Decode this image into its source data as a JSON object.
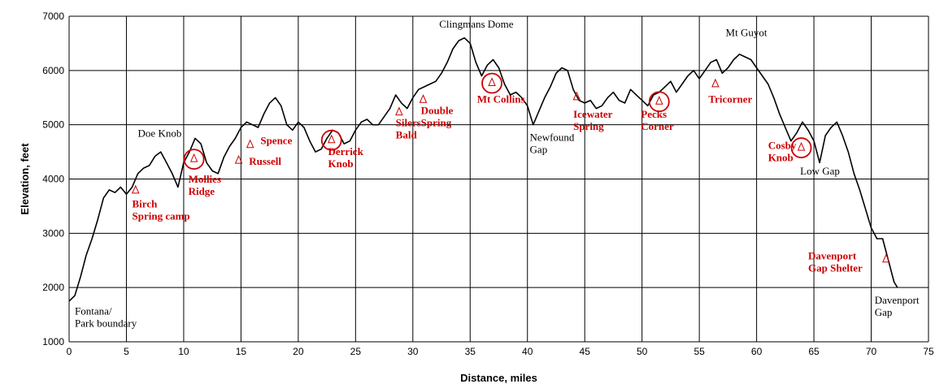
{
  "chart_data": {
    "type": "line",
    "title": "",
    "xlabel": "Distance, miles",
    "ylabel": "Elevation, feet",
    "xlim": [
      0,
      75
    ],
    "ylim": [
      1000,
      7000
    ],
    "x_ticks": [
      0,
      5,
      10,
      15,
      20,
      25,
      30,
      35,
      40,
      45,
      50,
      55,
      60,
      65,
      70,
      75
    ],
    "y_ticks": [
      1000,
      2000,
      3000,
      4000,
      5000,
      6000,
      7000
    ],
    "grid": true,
    "series": [
      {
        "color": "#000000",
        "points": [
          [
            0,
            1750
          ],
          [
            0.5,
            1850
          ],
          [
            1,
            2200
          ],
          [
            1.5,
            2600
          ],
          [
            2,
            2900
          ],
          [
            2.5,
            3250
          ],
          [
            3,
            3650
          ],
          [
            3.5,
            3800
          ],
          [
            4,
            3750
          ],
          [
            4.5,
            3850
          ],
          [
            5,
            3720
          ],
          [
            5.5,
            3850
          ],
          [
            6,
            4100
          ],
          [
            6.5,
            4200
          ],
          [
            7,
            4250
          ],
          [
            7.5,
            4420
          ],
          [
            8,
            4500
          ],
          [
            8.5,
            4300
          ],
          [
            9,
            4100
          ],
          [
            9.5,
            3850
          ],
          [
            10,
            4300
          ],
          [
            10.5,
            4500
          ],
          [
            11,
            4750
          ],
          [
            11.5,
            4650
          ],
          [
            12,
            4300
          ],
          [
            12.5,
            4150
          ],
          [
            13,
            4100
          ],
          [
            13.5,
            4400
          ],
          [
            14,
            4600
          ],
          [
            14.5,
            4750
          ],
          [
            15,
            4950
          ],
          [
            15.5,
            5050
          ],
          [
            16,
            5000
          ],
          [
            16.5,
            4950
          ],
          [
            17,
            5200
          ],
          [
            17.5,
            5400
          ],
          [
            18,
            5500
          ],
          [
            18.5,
            5350
          ],
          [
            19,
            5000
          ],
          [
            19.5,
            4900
          ],
          [
            20,
            5050
          ],
          [
            20.5,
            4950
          ],
          [
            21,
            4700
          ],
          [
            21.5,
            4500
          ],
          [
            22,
            4550
          ],
          [
            22.5,
            4750
          ],
          [
            23,
            4900
          ],
          [
            23.5,
            4850
          ],
          [
            24,
            4650
          ],
          [
            24.5,
            4700
          ],
          [
            25,
            4900
          ],
          [
            25.5,
            5050
          ],
          [
            26,
            5100
          ],
          [
            26.5,
            5000
          ],
          [
            27,
            5000
          ],
          [
            27.5,
            5150
          ],
          [
            28,
            5300
          ],
          [
            28.5,
            5550
          ],
          [
            29,
            5400
          ],
          [
            29.5,
            5300
          ],
          [
            30,
            5500
          ],
          [
            30.5,
            5650
          ],
          [
            31,
            5700
          ],
          [
            31.5,
            5750
          ],
          [
            32,
            5800
          ],
          [
            32.5,
            5950
          ],
          [
            33,
            6150
          ],
          [
            33.5,
            6400
          ],
          [
            34,
            6550
          ],
          [
            34.5,
            6600
          ],
          [
            35,
            6500
          ],
          [
            35.5,
            6150
          ],
          [
            36,
            5900
          ],
          [
            36.5,
            6100
          ],
          [
            37,
            6200
          ],
          [
            37.5,
            6050
          ],
          [
            38,
            5750
          ],
          [
            38.5,
            5550
          ],
          [
            39,
            5600
          ],
          [
            39.5,
            5500
          ],
          [
            40,
            5350
          ],
          [
            40.5,
            5000
          ],
          [
            41,
            5250
          ],
          [
            41.5,
            5500
          ],
          [
            42,
            5700
          ],
          [
            42.5,
            5950
          ],
          [
            43,
            6050
          ],
          [
            43.5,
            6000
          ],
          [
            44,
            5650
          ],
          [
            44.5,
            5450
          ],
          [
            45,
            5400
          ],
          [
            45.5,
            5450
          ],
          [
            46,
            5300
          ],
          [
            46.5,
            5350
          ],
          [
            47,
            5500
          ],
          [
            47.5,
            5600
          ],
          [
            48,
            5450
          ],
          [
            48.5,
            5400
          ],
          [
            49,
            5650
          ],
          [
            49.5,
            5550
          ],
          [
            50,
            5450
          ],
          [
            50.5,
            5350
          ],
          [
            51,
            5550
          ],
          [
            51.5,
            5600
          ],
          [
            52,
            5700
          ],
          [
            52.5,
            5800
          ],
          [
            53,
            5600
          ],
          [
            53.5,
            5750
          ],
          [
            54,
            5900
          ],
          [
            54.5,
            6000
          ],
          [
            55,
            5850
          ],
          [
            55.5,
            6000
          ],
          [
            56,
            6150
          ],
          [
            56.5,
            6200
          ],
          [
            57,
            5950
          ],
          [
            57.5,
            6050
          ],
          [
            58,
            6200
          ],
          [
            58.5,
            6300
          ],
          [
            59,
            6250
          ],
          [
            59.5,
            6200
          ],
          [
            60,
            6050
          ],
          [
            60.5,
            5900
          ],
          [
            61,
            5750
          ],
          [
            61.5,
            5500
          ],
          [
            62,
            5200
          ],
          [
            62.5,
            4950
          ],
          [
            63,
            4700
          ],
          [
            63.5,
            4850
          ],
          [
            64,
            5050
          ],
          [
            64.5,
            4900
          ],
          [
            65,
            4700
          ],
          [
            65.5,
            4300
          ],
          [
            66,
            4800
          ],
          [
            66.5,
            4950
          ],
          [
            67,
            5050
          ],
          [
            67.5,
            4800
          ],
          [
            68,
            4500
          ],
          [
            68.5,
            4100
          ],
          [
            69,
            3800
          ],
          [
            69.5,
            3450
          ],
          [
            70,
            3100
          ],
          [
            70.5,
            2900
          ],
          [
            71,
            2900
          ],
          [
            71.5,
            2500
          ],
          [
            72,
            2100
          ],
          [
            72.3,
            2000
          ]
        ]
      }
    ],
    "place_labels": [
      {
        "lines": [
          "Fontana/",
          "Park boundary"
        ],
        "x": 0.5,
        "y": 1500
      },
      {
        "lines": [
          "Doe Knob"
        ],
        "x": 6,
        "y": 4780
      },
      {
        "lines": [
          "Clingmans Dome"
        ],
        "x": 32.3,
        "y": 6790
      },
      {
        "lines": [
          "Newfound",
          "Gap"
        ],
        "x": 40.2,
        "y": 4700
      },
      {
        "lines": [
          "Mt Guyot"
        ],
        "x": 57.3,
        "y": 6630
      },
      {
        "lines": [
          "Low Gap"
        ],
        "x": 63.8,
        "y": 4080
      },
      {
        "lines": [
          "Davenport",
          "Gap"
        ],
        "x": 70.3,
        "y": 1700
      }
    ],
    "shelters": [
      {
        "lines": [
          "Birch",
          "Spring camp"
        ],
        "mx": 5.8,
        "my": 3800,
        "lx": 5.5,
        "ly": 3480
      },
      {
        "lines": [
          "Mollies",
          "Ridge"
        ],
        "mx": 10.9,
        "my": 4380,
        "lx": 10.4,
        "ly": 3930,
        "circled": true
      },
      {
        "lines": [
          "Spence"
        ],
        "mx": 15.8,
        "my": 4640,
        "lx": 16.7,
        "ly": 4640
      },
      {
        "lines": [
          "Russell"
        ],
        "mx": 14.8,
        "my": 4350,
        "lx": 15.7,
        "ly": 4260
      },
      {
        "lines": [
          "Derrick",
          "Knob"
        ],
        "mx": 22.9,
        "my": 4730,
        "lx": 22.6,
        "ly": 4440,
        "circled": true
      },
      {
        "lines": [
          "Silers",
          "Bald"
        ],
        "mx": 28.8,
        "my": 5240,
        "lx": 28.5,
        "ly": 4970
      },
      {
        "lines": [
          "Double",
          "Spring"
        ],
        "mx": 30.9,
        "my": 5470,
        "lx": 30.7,
        "ly": 5200
      },
      {
        "lines": [
          "Mt Collins"
        ],
        "mx": 36.9,
        "my": 5780,
        "lx": 35.6,
        "ly": 5410,
        "circled": true
      },
      {
        "lines": [
          "Icewater",
          "Spring"
        ],
        "mx": 44.3,
        "my": 5520,
        "lx": 44.0,
        "ly": 5130
      },
      {
        "lines": [
          "Pecks",
          "Corner"
        ],
        "mx": 51.5,
        "my": 5440,
        "lx": 49.9,
        "ly": 5130,
        "circled": true
      },
      {
        "lines": [
          "Tricorner"
        ],
        "mx": 56.4,
        "my": 5760,
        "lx": 55.8,
        "ly": 5410
      },
      {
        "lines": [
          "Cosby",
          "Knob"
        ],
        "mx": 63.9,
        "my": 4590,
        "lx": 61.0,
        "ly": 4550,
        "circled": true
      },
      {
        "lines": [
          "Davenport",
          "Gap Shelter"
        ],
        "mx": 71.3,
        "my": 2530,
        "lx": 64.5,
        "ly": 2520
      }
    ]
  }
}
